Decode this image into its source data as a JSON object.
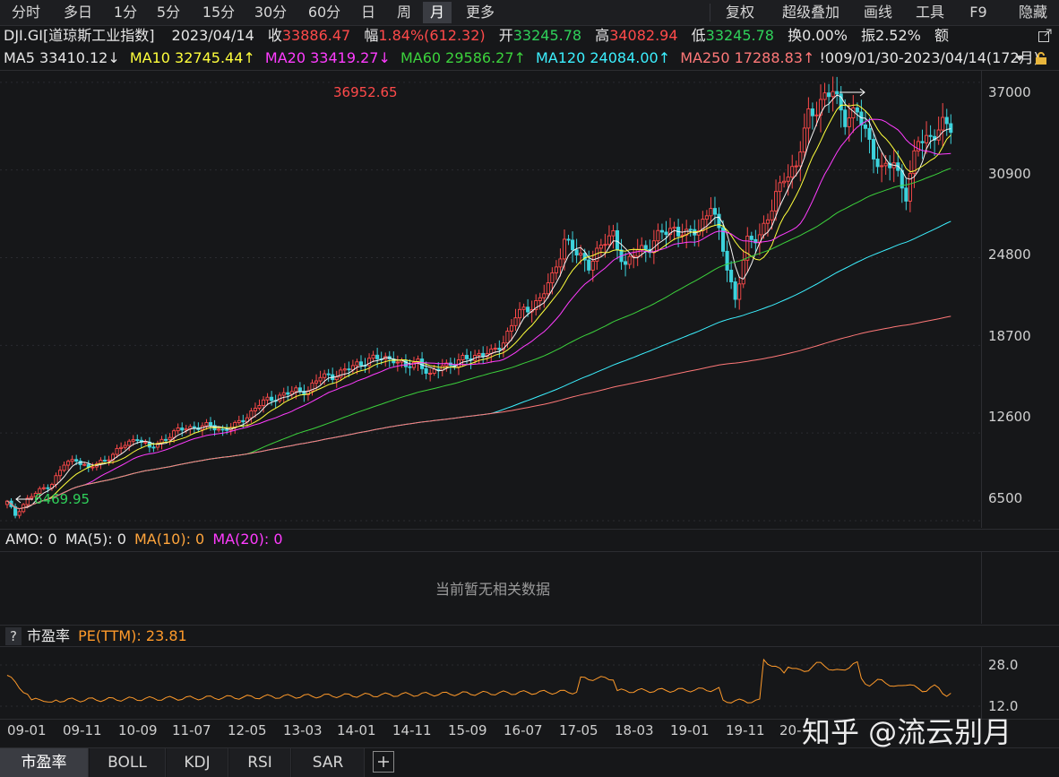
{
  "toolbar": {
    "left_buttons": [
      "分时",
      "多日",
      "1分",
      "5分",
      "15分",
      "30分",
      "60分",
      "日",
      "周",
      "月",
      "更多"
    ],
    "active": "月",
    "right_buttons": [
      "复权",
      "超级叠加",
      "画线",
      "工具",
      "F9",
      "隐藏"
    ]
  },
  "quote": {
    "symbol": "DJI.GI[道琼斯工业指数]",
    "date": "2023/04/14",
    "close_label": "收",
    "close": "33886.47",
    "change_label": "幅",
    "change": "1.84%(612.32)",
    "open_label": "开",
    "open": "33245.78",
    "high_label": "高",
    "high": "34082.94",
    "low_label": "低",
    "low": "33245.78",
    "turnover_label": "换",
    "turnover": "0.00%",
    "amplitude_label": "振",
    "amplitude": "2.52%",
    "amount_label": "额"
  },
  "ma_row": {
    "ma5": "MA5 33410.12↓",
    "ma10": "MA10 32745.44↑",
    "ma20": "MA20 33419.27↓",
    "ma60": "MA60 29586.27↑",
    "ma120": "MA120 24084.00↑",
    "ma250": "MA250 17288.83↑",
    "range": "!009/01/30-2023/04/14(172月)"
  },
  "indicator_panel": {
    "header_amo": "AMO: 0",
    "header_ma5": "MA(5): 0",
    "header_ma10": "MA(10): 0",
    "header_ma20": "MA(20): 0",
    "empty_message": "当前暂无相关数据"
  },
  "pe_panel": {
    "help": "?",
    "title": "市盈率",
    "value_label": "PE(TTM): 23.81",
    "y_ticks": [
      "28.0",
      "12.0"
    ]
  },
  "bottom_tabs": [
    "市盈率",
    "BOLL",
    "KDJ",
    "RSI",
    "SAR"
  ],
  "add_tab_icon": "plus-icon",
  "watermark": "知乎 @流云别月",
  "colors": {
    "up": "#ff4a4a",
    "down": "#3cd2dc",
    "ma5": "#f4f4f4",
    "ma10": "#ffff3c",
    "ma20": "#ff3cff",
    "ma60": "#3cd23c",
    "ma120": "#3cf0ff",
    "ma250": "#ff7878",
    "pe": "#ff9a2a"
  },
  "chart_data": {
    "type": "candlestick",
    "y_ticks": [
      37000,
      30900,
      24800,
      18700,
      12600,
      6500
    ],
    "ylim": [
      6000,
      37800
    ],
    "x_ticks": [
      "09-01",
      "09-11",
      "10-09",
      "11-07",
      "12-05",
      "13-03",
      "14-01",
      "14-11",
      "15-09",
      "16-07",
      "17-05",
      "18-03",
      "19-01",
      "19-11",
      "20-"
    ],
    "annotations": {
      "max": "36952.65",
      "min": "6469.95"
    },
    "close_path": [
      [
        0,
        7800
      ],
      [
        2,
        6900
      ],
      [
        5,
        8000
      ],
      [
        8,
        8600
      ],
      [
        11,
        9100
      ],
      [
        14,
        10400
      ],
      [
        17,
        10800
      ],
      [
        20,
        10100
      ],
      [
        23,
        10600
      ],
      [
        26,
        11100
      ],
      [
        29,
        11800
      ],
      [
        32,
        12300
      ],
      [
        35,
        11500
      ],
      [
        38,
        12100
      ],
      [
        41,
        12600
      ],
      [
        44,
        13000
      ],
      [
        47,
        13000
      ],
      [
        50,
        13100
      ],
      [
        53,
        12800
      ],
      [
        56,
        13100
      ],
      [
        59,
        13800
      ],
      [
        62,
        14600
      ],
      [
        65,
        15000
      ],
      [
        68,
        15300
      ],
      [
        71,
        15500
      ],
      [
        74,
        15600
      ],
      [
        77,
        16500
      ],
      [
        80,
        16600
      ],
      [
        83,
        16900
      ],
      [
        86,
        17400
      ],
      [
        89,
        17700
      ],
      [
        92,
        17800
      ],
      [
        95,
        17800
      ],
      [
        98,
        17100
      ],
      [
        101,
        17700
      ],
      [
        104,
        16500
      ],
      [
        107,
        17400
      ],
      [
        110,
        17400
      ],
      [
        113,
        17800
      ],
      [
        116,
        18100
      ],
      [
        119,
        18100
      ],
      [
        122,
        19000
      ],
      [
        125,
        20700
      ],
      [
        128,
        21300
      ],
      [
        131,
        21900
      ],
      [
        134,
        23400
      ],
      [
        137,
        26100
      ],
      [
        140,
        25000
      ],
      [
        143,
        24400
      ],
      [
        146,
        25500
      ],
      [
        149,
        26500
      ],
      [
        152,
        24100
      ],
      [
        155,
        25400
      ],
      [
        158,
        25600
      ],
      [
        161,
        26500
      ],
      [
        164,
        26900
      ],
      [
        167,
        26300
      ],
      [
        170,
        26800
      ],
      [
        173,
        28500
      ],
      [
        176,
        25400
      ],
      [
        179,
        21900
      ],
      [
        182,
        25800
      ],
      [
        185,
        26500
      ],
      [
        188,
        28100
      ],
      [
        191,
        30600
      ],
      [
        194,
        31100
      ],
      [
        197,
        34700
      ],
      [
        200,
        35700
      ],
      [
        203,
        36300
      ],
      [
        206,
        34600
      ],
      [
        209,
        34800
      ],
      [
        212,
        32900
      ],
      [
        215,
        30800
      ],
      [
        218,
        31400
      ],
      [
        221,
        29200
      ],
      [
        224,
        32900
      ],
      [
        227,
        33300
      ],
      [
        230,
        33900
      ],
      [
        232,
        33886
      ]
    ],
    "pe_ttm_current": 23.81
  }
}
